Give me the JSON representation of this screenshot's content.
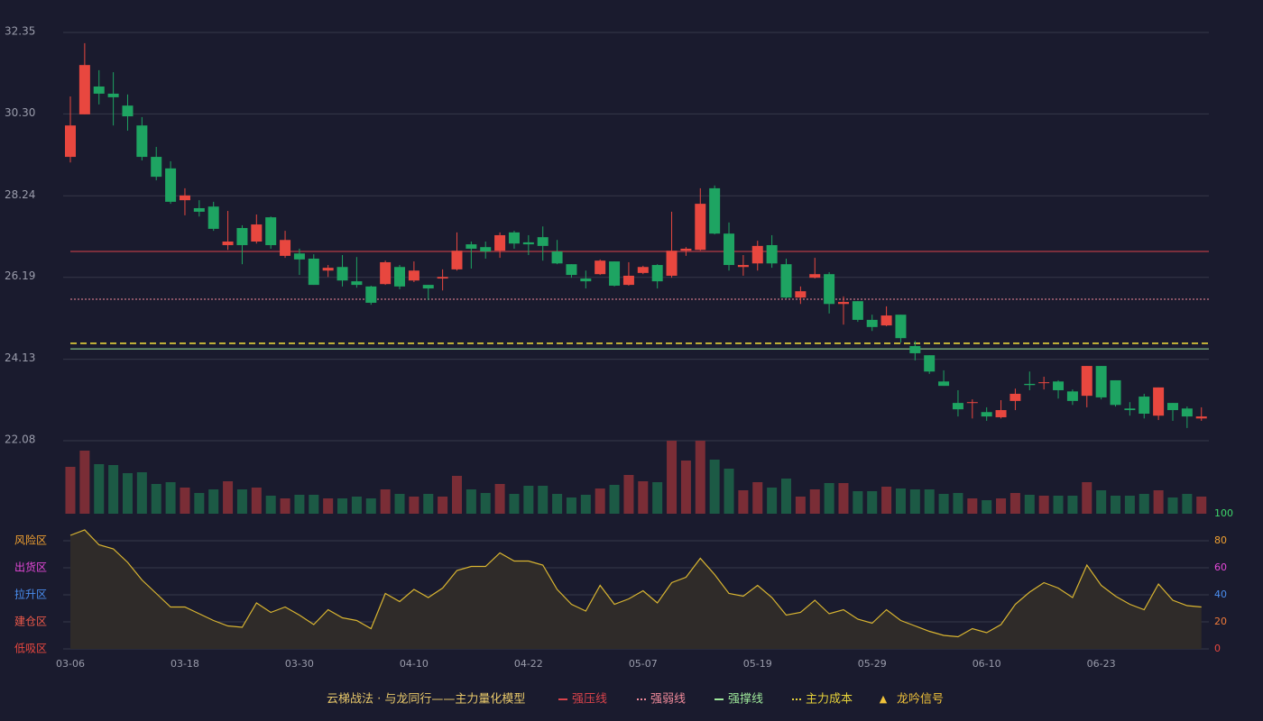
{
  "chart_data": {
    "type": "candlestick",
    "categories": [
      "03-06",
      null,
      null,
      null,
      null,
      null,
      null,
      null,
      "03-18",
      null,
      null,
      null,
      null,
      null,
      null,
      null,
      "03-30",
      null,
      null,
      null,
      null,
      null,
      null,
      null,
      "04-10",
      null,
      null,
      null,
      null,
      null,
      null,
      null,
      "04-22",
      null,
      null,
      null,
      null,
      null,
      null,
      null,
      "05-07",
      null,
      null,
      null,
      null,
      null,
      null,
      null,
      "05-19",
      null,
      null,
      null,
      null,
      null,
      null,
      null,
      "05-29",
      null,
      null,
      null,
      null,
      null,
      null,
      null,
      "06-10",
      null,
      null,
      null,
      null,
      null,
      null,
      null,
      "06-23",
      null,
      null,
      null,
      null,
      null,
      null,
      null
    ],
    "open": [
      29.22,
      30.29,
      30.99,
      30.81,
      30.51,
      30.01,
      29.22,
      28.93,
      28.13,
      27.93,
      27.97,
      27.0,
      27.43,
      27.09,
      27.7,
      26.73,
      26.79,
      26.66,
      26.36,
      26.45,
      26.09,
      25.96,
      26.02,
      26.45,
      26.11,
      26.0,
      26.16,
      26.39,
      27.02,
      26.95,
      26.86,
      27.32,
      27.07,
      27.2,
      26.84,
      26.52,
      26.16,
      26.27,
      26.59,
      26.0,
      26.3,
      26.5,
      26.23,
      26.86,
      26.88,
      28.43,
      27.29,
      26.45,
      26.54,
      27.0,
      26.52,
      25.68,
      26.18,
      26.27,
      25.52,
      25.59,
      25.12,
      24.98,
      25.25,
      24.46,
      24.23,
      23.57,
      23.03,
      23.03,
      22.8,
      22.67,
      23.08,
      23.51,
      23.53,
      23.57,
      23.32,
      23.21,
      23.96,
      23.6,
      22.89,
      23.19,
      22.71,
      23.03,
      22.89,
      22.64
    ],
    "high": [
      30.74,
      32.08,
      31.4,
      31.35,
      30.79,
      30.22,
      29.47,
      29.11,
      28.43,
      28.13,
      28.09,
      27.86,
      27.5,
      27.77,
      27.72,
      27.36,
      26.91,
      26.77,
      26.5,
      26.75,
      26.7,
      25.98,
      26.61,
      26.5,
      26.59,
      26.0,
      26.39,
      27.32,
      27.09,
      27.09,
      27.32,
      27.36,
      27.25,
      27.47,
      27.13,
      26.52,
      26.36,
      26.64,
      26.59,
      26.57,
      26.48,
      26.52,
      27.84,
      26.95,
      28.43,
      28.5,
      27.57,
      26.75,
      27.11,
      27.25,
      26.66,
      25.96,
      26.68,
      26.32,
      25.71,
      25.59,
      25.25,
      25.46,
      25.25,
      24.59,
      24.23,
      23.85,
      23.35,
      23.12,
      22.92,
      23.1,
      23.39,
      23.82,
      23.69,
      23.6,
      23.37,
      23.96,
      23.96,
      23.6,
      23.05,
      23.26,
      23.42,
      23.03,
      22.94,
      22.92
    ],
    "low": [
      29.08,
      30.29,
      30.54,
      30.01,
      29.88,
      29.13,
      28.63,
      28.04,
      27.75,
      27.72,
      27.36,
      26.88,
      26.52,
      27.04,
      26.91,
      26.68,
      26.25,
      26.0,
      26.2,
      25.96,
      25.93,
      25.5,
      26.0,
      25.89,
      26.07,
      25.62,
      25.86,
      26.36,
      26.41,
      26.66,
      26.68,
      26.91,
      26.75,
      26.61,
      26.52,
      26.18,
      25.91,
      26.25,
      25.96,
      25.98,
      26.27,
      25.91,
      26.18,
      26.73,
      26.86,
      27.27,
      26.36,
      26.23,
      26.36,
      26.43,
      25.66,
      25.52,
      26.16,
      25.28,
      25.0,
      25.07,
      24.84,
      24.96,
      24.55,
      24.1,
      23.76,
      23.46,
      22.69,
      22.64,
      22.58,
      22.64,
      22.85,
      23.35,
      23.37,
      23.14,
      22.98,
      22.92,
      23.12,
      22.94,
      22.71,
      22.64,
      22.6,
      22.58,
      22.4,
      22.58
    ],
    "close": [
      30.01,
      31.53,
      30.81,
      30.72,
      30.24,
      29.22,
      28.72,
      28.09,
      28.25,
      27.84,
      27.41,
      27.09,
      27.0,
      27.52,
      27.0,
      27.13,
      26.64,
      26.0,
      26.43,
      26.11,
      26.0,
      25.55,
      26.57,
      25.96,
      26.36,
      25.91,
      26.2,
      26.86,
      26.91,
      26.84,
      27.25,
      27.04,
      27.02,
      26.98,
      26.54,
      26.25,
      26.09,
      26.61,
      25.98,
      26.23,
      26.45,
      26.09,
      26.86,
      26.91,
      28.04,
      27.29,
      26.5,
      26.5,
      26.98,
      26.54,
      25.68,
      25.84,
      26.27,
      25.52,
      25.57,
      25.12,
      24.94,
      25.23,
      24.66,
      24.28,
      23.82,
      23.46,
      22.87,
      23.05,
      22.69,
      22.85,
      23.26,
      23.48,
      23.55,
      23.35,
      23.08,
      23.96,
      23.17,
      22.98,
      22.85,
      22.76,
      23.42,
      22.85,
      22.69,
      22.69
    ],
    "volume": [
      52,
      70,
      55,
      54,
      45,
      46,
      33,
      35,
      29,
      23,
      27,
      36,
      27,
      29,
      20,
      17,
      21,
      21,
      17,
      17,
      19,
      17,
      27,
      22,
      19,
      22,
      19,
      42,
      27,
      23,
      33,
      22,
      31,
      31,
      22,
      18,
      21,
      28,
      32,
      43,
      36,
      35,
      81,
      59,
      81,
      60,
      50,
      26,
      35,
      29,
      39,
      19,
      27,
      34,
      34,
      25,
      25,
      30,
      28,
      27,
      27,
      22,
      23,
      17,
      15,
      17,
      23,
      21,
      20,
      20,
      20,
      35,
      26,
      20,
      20,
      22,
      26,
      18,
      22,
      19
    ],
    "up_color": "#e8473f",
    "down_color": "#1ea462",
    "ylim": [
      22.08,
      32.35
    ],
    "yticks": [
      22.08,
      24.13,
      26.19,
      28.24,
      {
        "value": 30.3,
        "label": "30.30"
      },
      32.35
    ],
    "grid": true,
    "levels": [
      {
        "name": "强压线",
        "value": 26.84,
        "color": "#d9434b",
        "style": "solid"
      },
      {
        "name": "强弱线",
        "value": 25.64,
        "color": "#f08a9a",
        "style": "dotted"
      },
      {
        "name": "强撑线",
        "value": 24.39,
        "color": "#9ee89a",
        "style": "solid"
      },
      {
        "name": "主力成本",
        "value": 24.53,
        "color": "#e6d23a",
        "style": "dashed"
      }
    ],
    "signal": {
      "name": "龙吟信号",
      "color": "#f0c23a"
    },
    "legend_title": "云梯战法 · 与龙同行——主力量化模型",
    "oscillator": {
      "values": [
        84,
        88,
        77,
        74,
        64,
        51,
        41,
        31,
        31,
        26,
        21,
        17,
        16,
        34,
        27,
        31,
        25,
        18,
        29,
        23,
        21,
        15,
        41,
        35,
        44,
        38,
        45,
        58,
        61,
        61,
        71,
        65,
        65,
        62,
        44,
        33,
        28,
        47,
        33,
        37,
        43,
        34,
        49,
        53,
        67,
        55,
        41,
        39,
        47,
        38,
        25,
        27,
        36,
        26,
        29,
        22,
        19,
        29,
        21,
        17,
        13,
        10,
        9,
        15,
        12,
        18,
        33,
        42,
        49,
        45,
        38,
        62,
        47,
        39,
        33,
        29,
        48,
        36,
        32,
        31
      ],
      "color": "#d9b531",
      "fill": "#2f2b29",
      "ylim": [
        0,
        100
      ],
      "yticks": [
        0,
        20,
        40,
        60,
        80,
        100
      ],
      "tick_colors": [
        "#e8473f",
        "#ef7a3a",
        "#4a8ef0",
        "#e448d8",
        "#f0a030",
        "#3ed66a"
      ],
      "zones": [
        {
          "label": "风险区",
          "value": 80,
          "color": "#f0a030"
        },
        {
          "label": "出货区",
          "value": 60,
          "color": "#e448d8"
        },
        {
          "label": "拉升区",
          "value": 40,
          "color": "#4a8ef0"
        },
        {
          "label": "建仓区",
          "value": 20,
          "color": "#ef5a4a"
        },
        {
          "label": "低吸区",
          "value": 0,
          "color": "#e8473f"
        }
      ]
    }
  }
}
